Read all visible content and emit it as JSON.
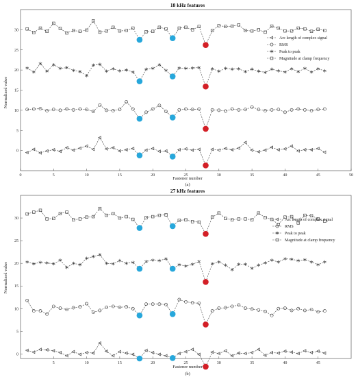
{
  "chart_data": [
    {
      "type": "line",
      "title": "18 kHz features",
      "xlabel": "Fastener number",
      "ylabel": "Normalized value",
      "caption": "(a)",
      "xlim": [
        0,
        50
      ],
      "ylim": [
        -5,
        35
      ],
      "xticks": [
        0,
        5,
        10,
        15,
        20,
        25,
        30,
        35,
        40,
        45,
        50
      ],
      "yticks": [
        0,
        5,
        10,
        15,
        20,
        25,
        30
      ],
      "grid": false,
      "legend_position": "right",
      "legend": [
        "Arc length of complex signal",
        "RMS",
        "Peak to peak",
        "Magnitude at clamp frequency"
      ],
      "x": [
        1,
        2,
        3,
        4,
        5,
        6,
        7,
        8,
        9,
        10,
        11,
        12,
        13,
        14,
        15,
        16,
        17,
        18,
        19,
        20,
        21,
        22,
        23,
        24,
        25,
        26,
        27,
        28,
        29,
        30,
        31,
        32,
        33,
        34,
        35,
        36,
        37,
        38,
        39,
        40,
        41,
        42,
        43,
        44,
        45,
        46
      ],
      "series": [
        {
          "values": [
            30.2,
            29.3,
            30.4,
            29.6,
            31.6,
            30.3,
            29.2,
            29.8,
            29.6,
            29.9,
            32.2,
            29.4,
            29.7,
            30.6,
            29.7,
            29.8,
            30.4,
            27.5,
            29.5,
            29.6,
            30.6,
            30.2,
            27.9,
            30.4,
            30.6,
            30.0,
            30.8,
            26.2,
            29.8,
            31.0,
            30.8,
            30.9,
            31.2,
            29.8,
            29.7,
            30.0,
            29.4,
            30.9,
            30.4,
            29.7,
            29.7,
            30.4,
            30.2,
            29.6,
            30.1,
            29.8
          ],
          "marker": "square"
        },
        {
          "values": [
            20.5,
            19.5,
            21.6,
            19.7,
            21.3,
            20.4,
            20.6,
            19.9,
            19.6,
            18.6,
            21.2,
            21.4,
            19.7,
            20.3,
            19.8,
            20.0,
            19.5,
            17.2,
            20.2,
            20.4,
            21.3,
            19.9,
            18.4,
            20.5,
            20.4,
            20.5,
            20.6,
            15.9,
            20.3,
            19.7,
            20.4,
            20.2,
            20.3,
            19.6,
            20.2,
            19.7,
            19.4,
            20.2,
            19.8,
            19.5,
            20.3,
            19.6,
            20.4,
            19.5,
            20.3,
            19.8
          ],
          "marker": "star"
        },
        {
          "values": [
            10.2,
            10.3,
            10.4,
            9.9,
            10.2,
            10.0,
            10.3,
            10.1,
            10.3,
            10.2,
            9.7,
            11.3,
            10.0,
            9.9,
            10.2,
            12.1,
            10.3,
            7.9,
            9.5,
            10.3,
            11.2,
            9.7,
            8.2,
            10.1,
            10.3,
            10.2,
            10.3,
            5.4,
            10.1,
            10.0,
            9.8,
            10.3,
            10.1,
            10.2,
            10.8,
            10.2,
            9.9,
            10.1,
            10.2,
            9.5,
            10.1,
            10.3,
            10.1,
            9.9,
            10.2,
            10.3
          ],
          "marker": "circle"
        },
        {
          "values": [
            -0.5,
            0.3,
            -0.6,
            -0.1,
            0.2,
            -0.2,
            0.7,
            0.1,
            0.6,
            1.1,
            0.3,
            3.2,
            0.4,
            0.7,
            -0.1,
            0.2,
            0.5,
            -1.2,
            0.1,
            0.5,
            -0.2,
            -0.1,
            -1.5,
            0.2,
            0.4,
            0.1,
            0.3,
            -3.7,
            0.3,
            0.1,
            0.5,
            0.2,
            0.6,
            2.0,
            0.1,
            -0.3,
            0.1,
            0.8,
            0.2,
            0.4,
            1.1,
            -0.1,
            0.2,
            0.2,
            0.5,
            -0.4
          ],
          "marker": "triangle"
        }
      ],
      "highlights": [
        {
          "x": 18,
          "y": 27.5,
          "color": "#27a7db"
        },
        {
          "x": 23,
          "y": 27.9,
          "color": "#27a7db"
        },
        {
          "x": 28,
          "y": 26.2,
          "color": "#d31f26"
        },
        {
          "x": 18,
          "y": 17.2,
          "color": "#27a7db"
        },
        {
          "x": 23,
          "y": 18.4,
          "color": "#27a7db"
        },
        {
          "x": 28,
          "y": 15.9,
          "color": "#d31f26"
        },
        {
          "x": 18,
          "y": 7.9,
          "color": "#27a7db"
        },
        {
          "x": 23,
          "y": 8.2,
          "color": "#27a7db"
        },
        {
          "x": 28,
          "y": 5.4,
          "color": "#d31f26"
        },
        {
          "x": 18,
          "y": -1.2,
          "color": "#27a7db"
        },
        {
          "x": 23,
          "y": -1.5,
          "color": "#27a7db"
        },
        {
          "x": 28,
          "y": -3.7,
          "color": "#d31f26"
        }
      ]
    },
    {
      "type": "line",
      "title": "27 kHz features",
      "xlabel": "Fastener number",
      "ylabel": "Normalized value",
      "caption": "(b)",
      "xlim": [
        0,
        50
      ],
      "ylim": [
        -1,
        35
      ],
      "xticks": [
        5,
        10,
        15,
        20,
        25,
        30,
        35,
        40,
        45
      ],
      "yticks": [
        0,
        5,
        10,
        15,
        20,
        25,
        30
      ],
      "grid": false,
      "legend_position": "top-right",
      "legend": [
        "Arc length of complex signal",
        "RMS",
        "Peak to peak",
        "Magnitude at clamp frequency"
      ],
      "x": [
        1,
        2,
        3,
        4,
        5,
        6,
        7,
        8,
        9,
        10,
        11,
        12,
        13,
        14,
        15,
        16,
        17,
        18,
        19,
        20,
        21,
        22,
        23,
        24,
        25,
        26,
        27,
        28,
        29,
        30,
        31,
        32,
        33,
        34,
        35,
        36,
        37,
        38,
        39,
        40,
        41,
        42,
        43,
        44,
        45,
        46
      ],
      "series": [
        {
          "values": [
            30.9,
            31.3,
            31.7,
            29.8,
            29.9,
            31.0,
            31.3,
            29.6,
            29.8,
            30.2,
            30.3,
            32.1,
            30.6,
            31.0,
            30.0,
            30.3,
            29.7,
            27.8,
            30.1,
            30.3,
            30.6,
            30.7,
            28.2,
            29.5,
            29.6,
            29.2,
            29.1,
            26.5,
            30.2,
            31.1,
            29.9,
            29.6,
            29.8,
            29.8,
            29.6,
            31.1,
            30.1,
            29.7,
            28.6,
            30.2,
            30.3,
            28.9,
            30.6,
            30.5,
            29.8,
            29.3
          ],
          "marker": "square"
        },
        {
          "values": [
            20.3,
            19.9,
            20.2,
            20.1,
            19.9,
            20.7,
            19.1,
            20.0,
            19.7,
            21.1,
            21.5,
            21.9,
            20.0,
            19.9,
            20.6,
            20.0,
            20.2,
            18.8,
            20.4,
            20.7,
            20.6,
            21.0,
            18.8,
            19.7,
            19.4,
            19.8,
            20.4,
            15.9,
            19.9,
            20.3,
            19.6,
            18.6,
            19.8,
            19.8,
            18.9,
            19.6,
            20.1,
            20.7,
            20.3,
            21.0,
            20.9,
            20.6,
            20.8,
            20.3,
            19.7,
            20.3
          ],
          "marker": "star"
        },
        {
          "values": [
            11.8,
            9.5,
            9.5,
            8.8,
            10.5,
            10.1,
            9.8,
            10.2,
            10.4,
            11.1,
            9.2,
            9.6,
            10.3,
            10.5,
            10.3,
            10.4,
            10.0,
            8.5,
            11.0,
            11.0,
            11.0,
            10.9,
            8.8,
            12.0,
            11.5,
            11.3,
            11.2,
            6.5,
            9.5,
            10.1,
            10.2,
            10.5,
            10.8,
            10.1,
            9.9,
            9.7,
            9.4,
            8.5,
            10.0,
            10.1,
            9.6,
            10.0,
            9.6,
            9.8,
            9.3,
            9.5
          ],
          "marker": "circle"
        },
        {
          "values": [
            0.8,
            0.4,
            1.0,
            0.9,
            0.7,
            0.3,
            -0.4,
            0.5,
            -0.1,
            0.3,
            0.2,
            2.4,
            0.6,
            -0.4,
            0.5,
            0.2,
            -0.1,
            -1.0,
            0.8,
            0.3,
            -0.1,
            -0.4,
            -0.9,
            0.1,
            0.5,
            1.0,
            -0.1,
            -2.8,
            0.4,
            0.1,
            0.7,
            -0.4,
            0.2,
            0.1,
            0.3,
            1.0,
            -0.3,
            0.3,
            0.2,
            0.6,
            0.4,
            0.1,
            0.7,
            0.3,
            0.6,
            0.2
          ],
          "marker": "triangle"
        }
      ],
      "highlights": [
        {
          "x": 18,
          "y": 27.8,
          "color": "#27a7db"
        },
        {
          "x": 23,
          "y": 28.2,
          "color": "#27a7db"
        },
        {
          "x": 28,
          "y": 26.5,
          "color": "#d31f26"
        },
        {
          "x": 18,
          "y": 18.8,
          "color": "#27a7db"
        },
        {
          "x": 23,
          "y": 18.8,
          "color": "#27a7db"
        },
        {
          "x": 28,
          "y": 15.9,
          "color": "#d31f26"
        },
        {
          "x": 18,
          "y": 8.5,
          "color": "#27a7db"
        },
        {
          "x": 23,
          "y": 8.8,
          "color": "#27a7db"
        },
        {
          "x": 28,
          "y": 6.5,
          "color": "#d31f26"
        },
        {
          "x": 18,
          "y": -1.0,
          "color": "#27a7db"
        },
        {
          "x": 23,
          "y": -0.9,
          "color": "#27a7db"
        },
        {
          "x": 28,
          "y": -2.8,
          "color": "#d31f26"
        }
      ]
    }
  ]
}
